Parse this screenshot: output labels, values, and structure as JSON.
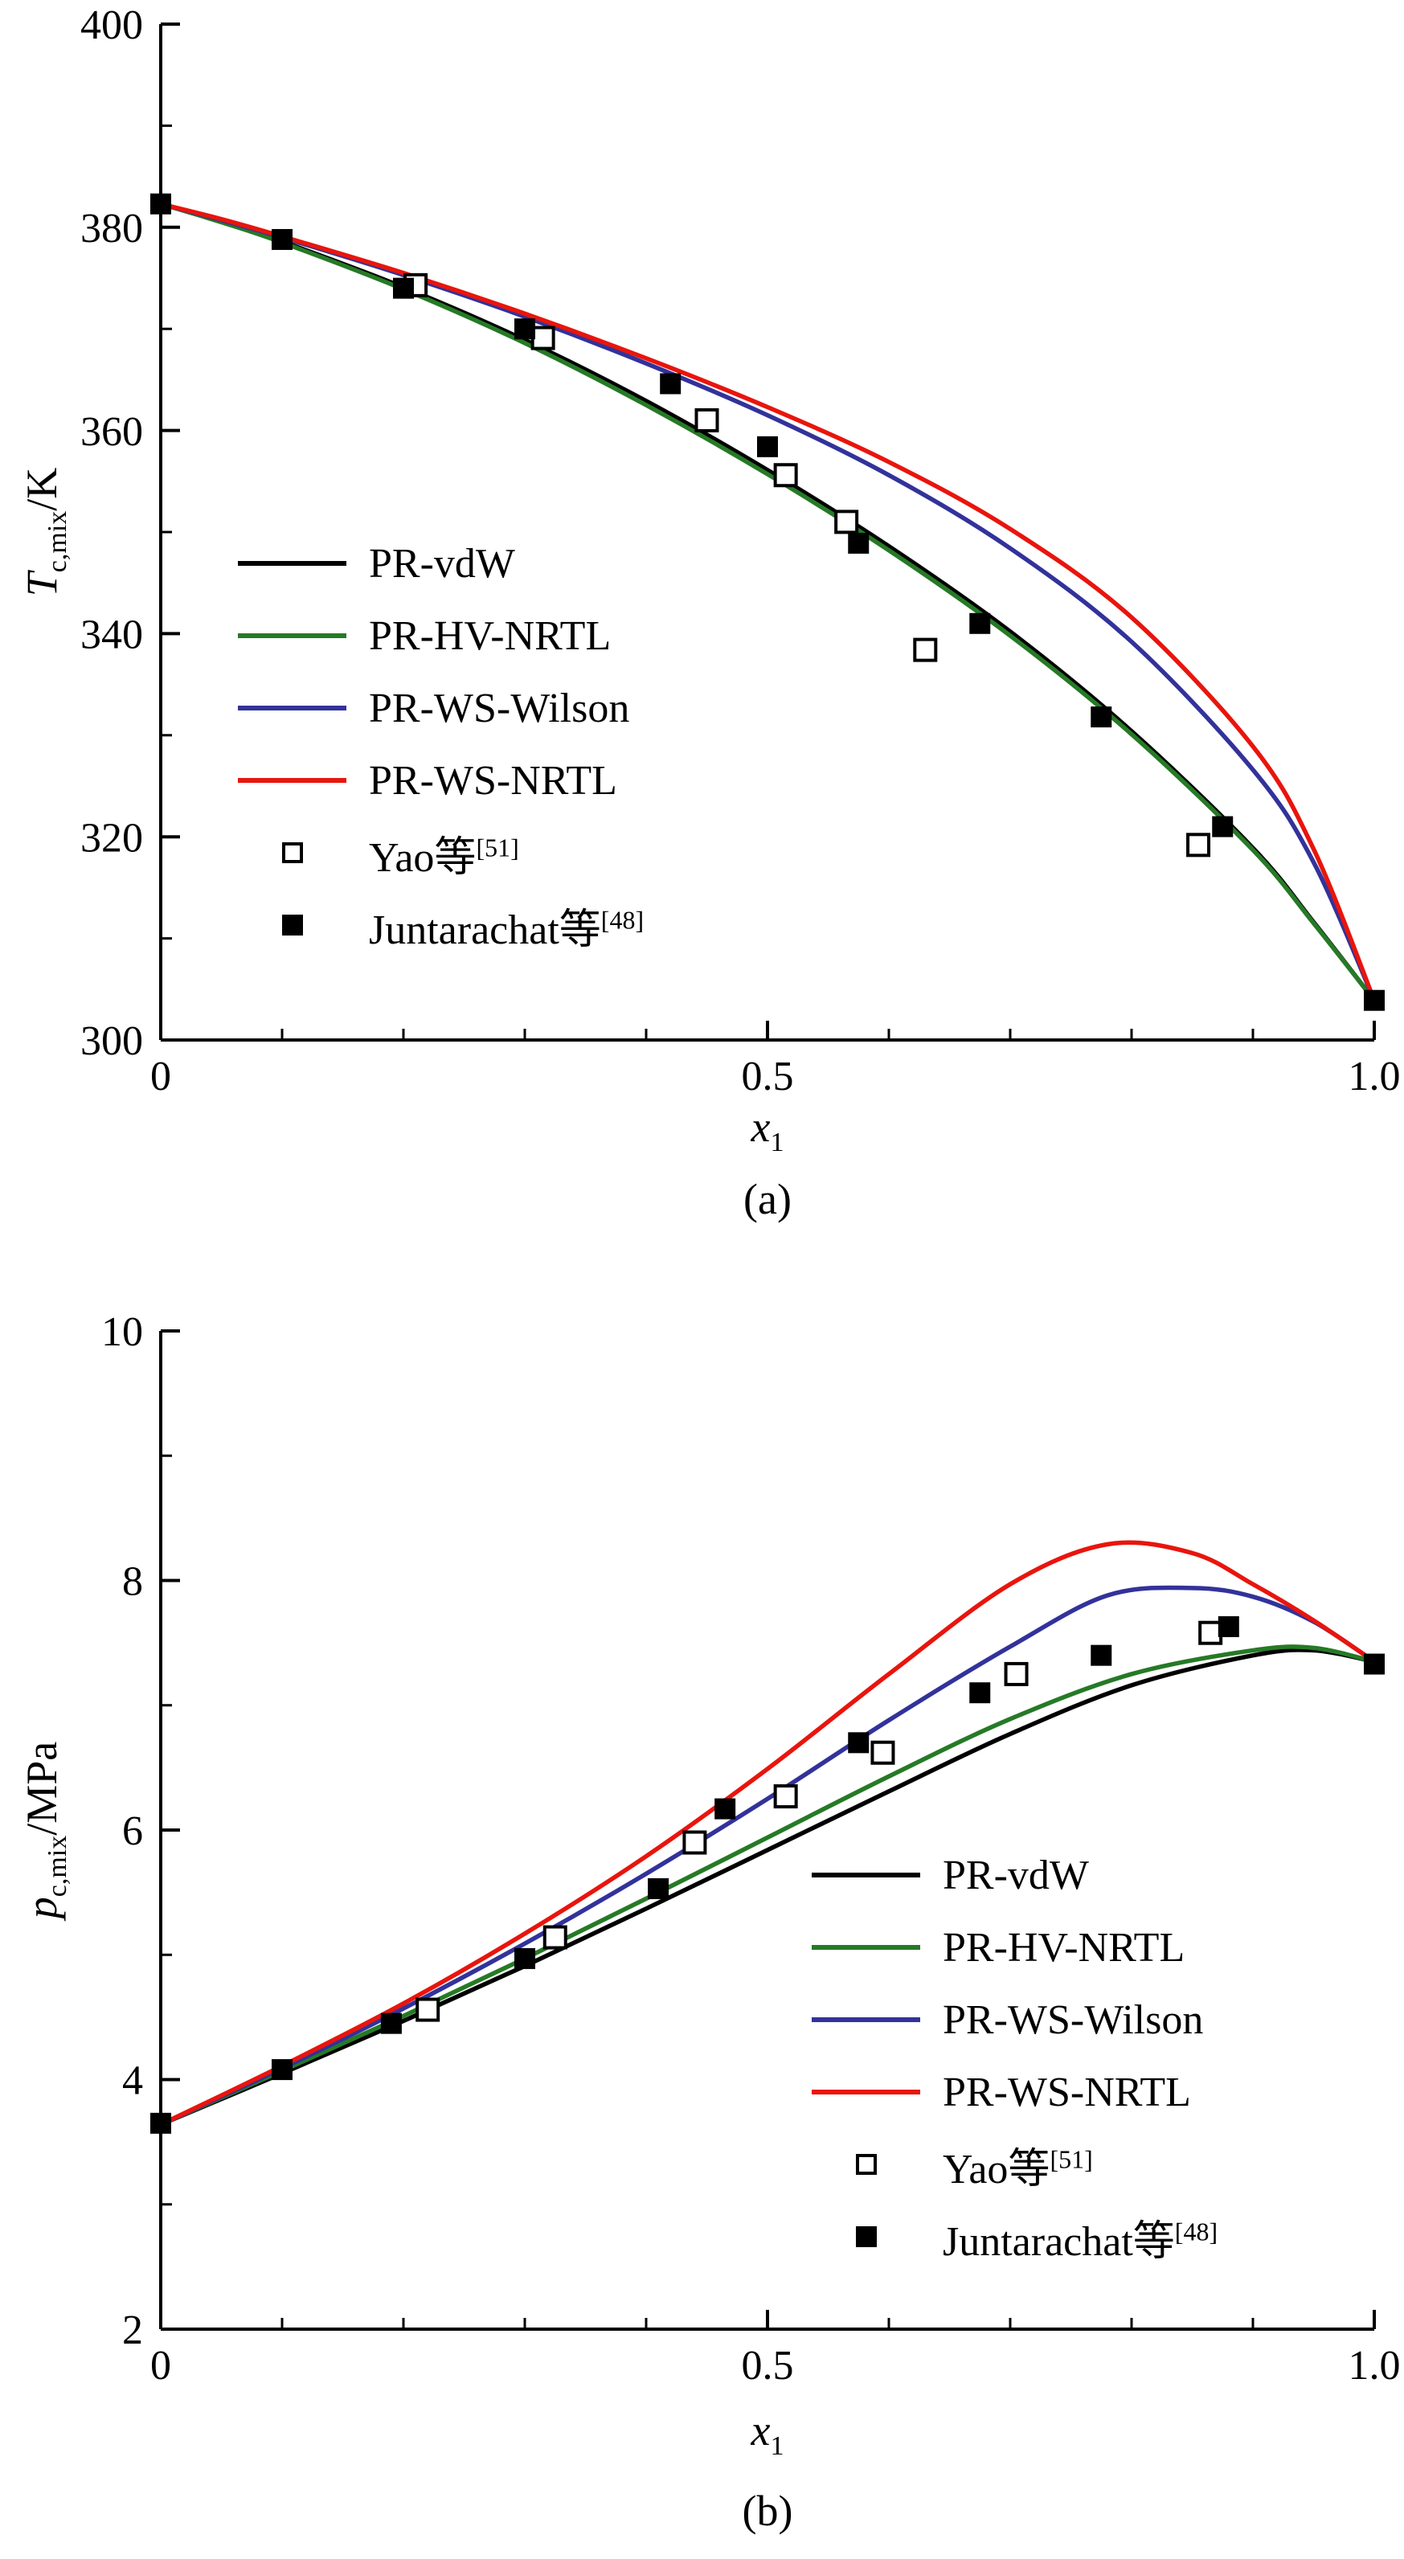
{
  "figure": {
    "background": "#ffffff"
  },
  "colors": {
    "pr_vdw": "#000000",
    "pr_hv_nrtl": "#267A26",
    "pr_ws_wilson": "#32329B",
    "pr_ws_nrtl": "#E8150D"
  },
  "chart_data": [
    {
      "id": "a",
      "type": "line+scatter",
      "caption": "(a)",
      "xlabel": {
        "main": "x",
        "sub": "1"
      },
      "ylabel": {
        "main": "T",
        "sub": "c,mix",
        "unit": "/K"
      },
      "xlim": [
        0,
        1
      ],
      "ylim": [
        300,
        400
      ],
      "grid": false,
      "legend_position": "middle-left",
      "x_ticks": {
        "major": [
          0,
          0.5,
          1
        ],
        "labels": [
          "0",
          "0.5",
          "1.0"
        ],
        "minor_step": 0.1
      },
      "y_ticks": {
        "major": [
          300,
          320,
          340,
          360,
          380,
          400
        ],
        "labels": [
          "300",
          "320",
          "340",
          "360",
          "380",
          "400"
        ],
        "minor_step": 10
      },
      "series": [
        {
          "label": "PR-vdW",
          "sup": "",
          "type": "line",
          "color_key": "pr_vdw",
          "points": [
            [
              0,
              382.3
            ],
            [
              0.05,
              380.6
            ],
            [
              0.1,
              378.6
            ],
            [
              0.2,
              374.1
            ],
            [
              0.3,
              368.9
            ],
            [
              0.4,
              362.9
            ],
            [
              0.5,
              356.1
            ],
            [
              0.6,
              348.6
            ],
            [
              0.7,
              340.2
            ],
            [
              0.8,
              330.4
            ],
            [
              0.9,
              318.9
            ],
            [
              0.95,
              311.6
            ],
            [
              1,
              303.9
            ]
          ]
        },
        {
          "label": "PR-HV-NRTL",
          "sup": "",
          "type": "line",
          "color_key": "pr_hv_nrtl",
          "points": [
            [
              0,
              382.3
            ],
            [
              0.05,
              380.5
            ],
            [
              0.1,
              378.5
            ],
            [
              0.2,
              373.9
            ],
            [
              0.3,
              368.6
            ],
            [
              0.4,
              362.5
            ],
            [
              0.5,
              355.7
            ],
            [
              0.6,
              348.2
            ],
            [
              0.7,
              339.8
            ],
            [
              0.8,
              330.1
            ],
            [
              0.9,
              318.7
            ],
            [
              0.95,
              311.5
            ],
            [
              1,
              303.9
            ]
          ]
        },
        {
          "label": "PR-WS-Wilson",
          "sup": "",
          "type": "line",
          "color_key": "pr_ws_wilson",
          "points": [
            [
              0,
              382.3
            ],
            [
              0.05,
              380.7
            ],
            [
              0.1,
              379
            ],
            [
              0.2,
              375.3
            ],
            [
              0.3,
              371.2
            ],
            [
              0.4,
              366.6
            ],
            [
              0.5,
              361.5
            ],
            [
              0.6,
              355.6
            ],
            [
              0.7,
              348.4
            ],
            [
              0.8,
              339.2
            ],
            [
              0.9,
              326.6
            ],
            [
              0.95,
              317.5
            ],
            [
              1,
              303.9
            ]
          ]
        },
        {
          "label": "PR-WS-NRTL",
          "sup": "",
          "type": "line",
          "color_key": "pr_ws_nrtl",
          "points": [
            [
              0,
              382.3
            ],
            [
              0.05,
              380.8
            ],
            [
              0.1,
              379.1
            ],
            [
              0.2,
              375.5
            ],
            [
              0.3,
              371.5
            ],
            [
              0.4,
              367.1
            ],
            [
              0.5,
              362.3
            ],
            [
              0.6,
              356.9
            ],
            [
              0.7,
              350.3
            ],
            [
              0.8,
              341.6
            ],
            [
              0.9,
              328.9
            ],
            [
              0.95,
              318.8
            ],
            [
              1,
              303.9
            ]
          ]
        },
        {
          "label": "Yao等",
          "sup": "[51]",
          "type": "scatter-open",
          "color_key": "pr_vdw",
          "points": [
            [
              0.21,
              374.3
            ],
            [
              0.315,
              369.1
            ],
            [
              0.45,
              361
            ],
            [
              0.515,
              355.6
            ],
            [
              0.565,
              351
            ],
            [
              0.63,
              338.4
            ],
            [
              0.855,
              319.2
            ]
          ]
        },
        {
          "label": "Juntarachat等",
          "sup": "[48]",
          "type": "scatter-filled",
          "color_key": "pr_vdw",
          "points": [
            [
              0,
              382.3
            ],
            [
              0.1,
              378.8
            ],
            [
              0.2,
              374
            ],
            [
              0.3,
              370
            ],
            [
              0.42,
              364.6
            ],
            [
              0.5,
              358.4
            ],
            [
              0.575,
              348.9
            ],
            [
              0.675,
              341
            ],
            [
              0.775,
              331.8
            ],
            [
              0.875,
              321
            ],
            [
              1,
              303.9
            ]
          ]
        }
      ]
    },
    {
      "id": "b",
      "type": "line+scatter",
      "caption": "(b)",
      "xlabel": {
        "main": "x",
        "sub": "1"
      },
      "ylabel": {
        "main": "p",
        "sub": "c,mix",
        "unit": "/MPa"
      },
      "xlim": [
        0,
        1
      ],
      "ylim": [
        2,
        10
      ],
      "grid": false,
      "legend_position": "middle-right",
      "x_ticks": {
        "major": [
          0,
          0.5,
          1
        ],
        "labels": [
          "0",
          "0.5",
          "1.0"
        ],
        "minor_step": 0.1
      },
      "y_ticks": {
        "major": [
          2,
          4,
          6,
          8,
          10
        ],
        "labels": [
          "2",
          "4",
          "6",
          "8",
          "10"
        ],
        "minor_step": 1
      },
      "series": [
        {
          "label": "PR-vdW",
          "sup": "",
          "type": "line",
          "color_key": "pr_vdw",
          "points": [
            [
              0,
              3.64
            ],
            [
              0.1,
              4.05
            ],
            [
              0.2,
              4.47
            ],
            [
              0.3,
              4.91
            ],
            [
              0.4,
              5.37
            ],
            [
              0.5,
              5.84
            ],
            [
              0.6,
              6.31
            ],
            [
              0.7,
              6.77
            ],
            [
              0.8,
              7.16
            ],
            [
              0.9,
              7.4
            ],
            [
              0.95,
              7.44
            ],
            [
              1,
              7.35
            ]
          ]
        },
        {
          "label": "PR-HV-NRTL",
          "sup": "",
          "type": "line",
          "color_key": "pr_hv_nrtl",
          "points": [
            [
              0,
              3.64
            ],
            [
              0.1,
              4.07
            ],
            [
              0.2,
              4.51
            ],
            [
              0.3,
              4.97
            ],
            [
              0.4,
              5.45
            ],
            [
              0.5,
              5.94
            ],
            [
              0.6,
              6.43
            ],
            [
              0.7,
              6.89
            ],
            [
              0.8,
              7.25
            ],
            [
              0.9,
              7.44
            ],
            [
              0.95,
              7.46
            ],
            [
              1,
              7.35
            ]
          ]
        },
        {
          "label": "PR-WS-Wilson",
          "sup": "",
          "type": "line",
          "color_key": "pr_ws_wilson",
          "points": [
            [
              0,
              3.64
            ],
            [
              0.1,
              4.09
            ],
            [
              0.2,
              4.57
            ],
            [
              0.3,
              5.09
            ],
            [
              0.4,
              5.65
            ],
            [
              0.5,
              6.25
            ],
            [
              0.6,
              6.88
            ],
            [
              0.7,
              7.47
            ],
            [
              0.78,
              7.88
            ],
            [
              0.85,
              7.94
            ],
            [
              0.9,
              7.87
            ],
            [
              0.95,
              7.67
            ],
            [
              1,
              7.35
            ]
          ]
        },
        {
          "label": "PR-WS-NRTL",
          "sup": "",
          "type": "line",
          "color_key": "pr_ws_nrtl",
          "points": [
            [
              0,
              3.64
            ],
            [
              0.1,
              4.11
            ],
            [
              0.2,
              4.61
            ],
            [
              0.3,
              5.17
            ],
            [
              0.4,
              5.79
            ],
            [
              0.5,
              6.49
            ],
            [
              0.6,
              7.25
            ],
            [
              0.7,
              7.97
            ],
            [
              0.78,
              8.29
            ],
            [
              0.85,
              8.22
            ],
            [
              0.9,
              7.97
            ],
            [
              0.95,
              7.68
            ],
            [
              1,
              7.35
            ]
          ]
        },
        {
          "label": "Yao等",
          "sup": "[51]",
          "type": "scatter-open",
          "color_key": "pr_vdw",
          "points": [
            [
              0.22,
              4.56
            ],
            [
              0.325,
              5.14
            ],
            [
              0.44,
              5.9
            ],
            [
              0.515,
              6.27
            ],
            [
              0.595,
              6.62
            ],
            [
              0.705,
              7.25
            ],
            [
              0.865,
              7.58
            ]
          ]
        },
        {
          "label": "Juntarachat等",
          "sup": "[48]",
          "type": "scatter-filled",
          "color_key": "pr_vdw",
          "points": [
            [
              0,
              3.65
            ],
            [
              0.1,
              4.08
            ],
            [
              0.19,
              4.45
            ],
            [
              0.3,
              4.97
            ],
            [
              0.41,
              5.53
            ],
            [
              0.465,
              6.17
            ],
            [
              0.575,
              6.7
            ],
            [
              0.675,
              7.1
            ],
            [
              0.775,
              7.4
            ],
            [
              0.88,
              7.63
            ],
            [
              1,
              7.33
            ]
          ]
        }
      ]
    }
  ]
}
